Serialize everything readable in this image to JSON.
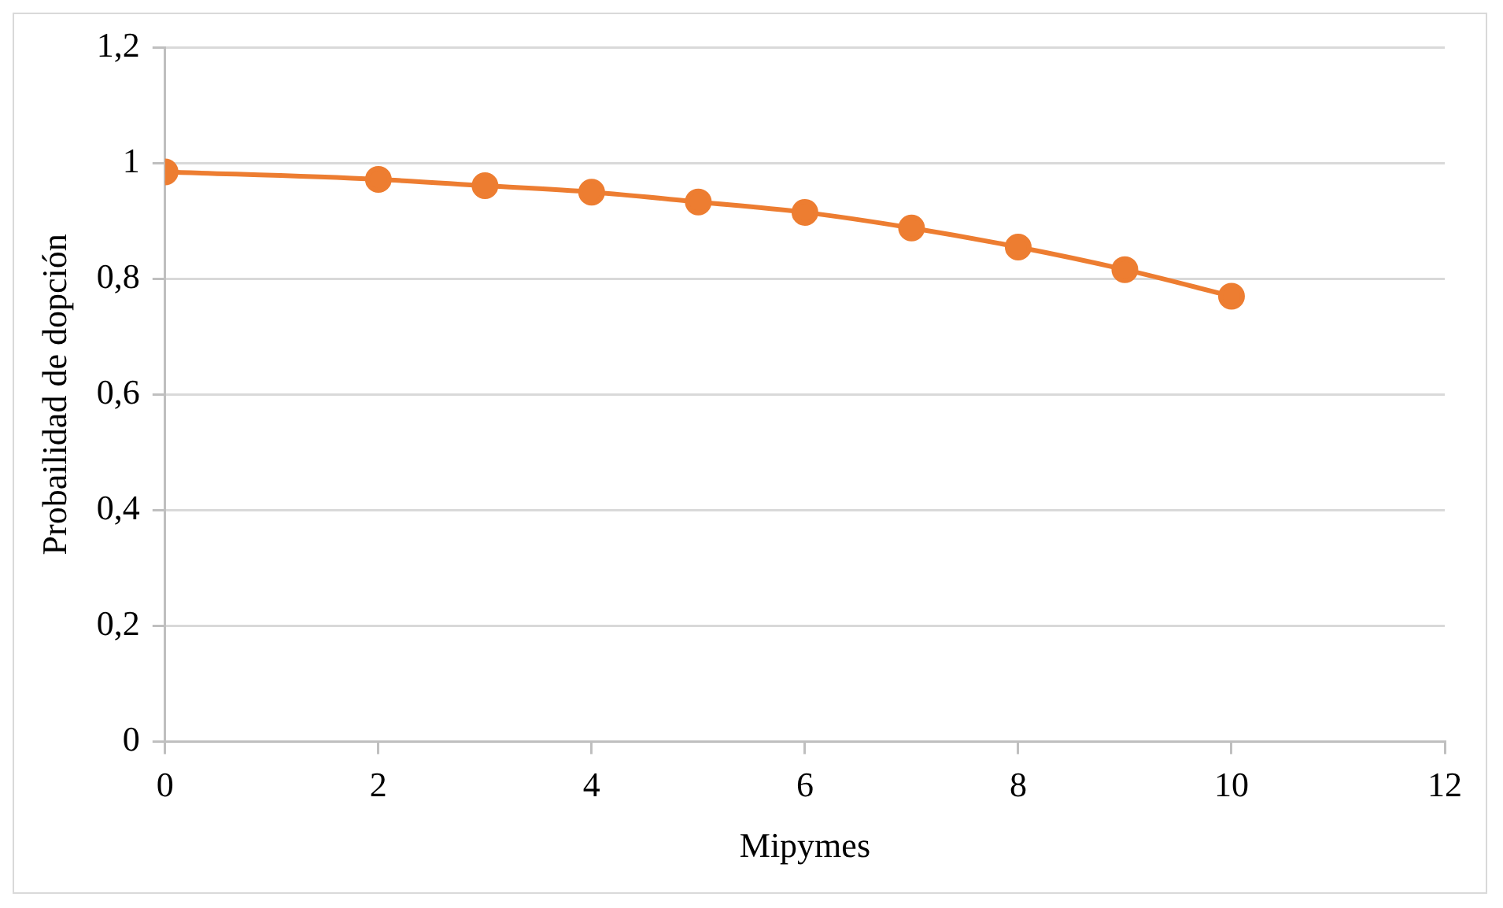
{
  "chart_data": {
    "type": "line",
    "xlabel": "Mipymes",
    "ylabel": "Probailidad de dopción",
    "x": [
      0,
      2,
      3,
      4,
      5,
      6,
      7,
      8,
      9,
      10
    ],
    "series": [
      {
        "color": "#ed7d31",
        "values": [
          0.985,
          0.972,
          0.961,
          0.95,
          0.933,
          0.915,
          0.888,
          0.855,
          0.816,
          0.77
        ]
      }
    ],
    "xlim": [
      0,
      12
    ],
    "xticks": [
      0,
      2,
      4,
      6,
      8,
      10,
      12
    ],
    "ylim": [
      0,
      1.2
    ],
    "yticks": [
      0,
      {
        "value": 0.2,
        "label": "0,2"
      },
      {
        "value": 0.4,
        "label": "0,4"
      },
      {
        "value": 0.6,
        "label": "0,6"
      },
      {
        "value": 0.8,
        "label": "0,8"
      },
      1,
      {
        "value": 1.2,
        "label": "1,2"
      }
    ],
    "grid": "y",
    "marker": "circle",
    "line_style": "solid",
    "legend": false
  }
}
